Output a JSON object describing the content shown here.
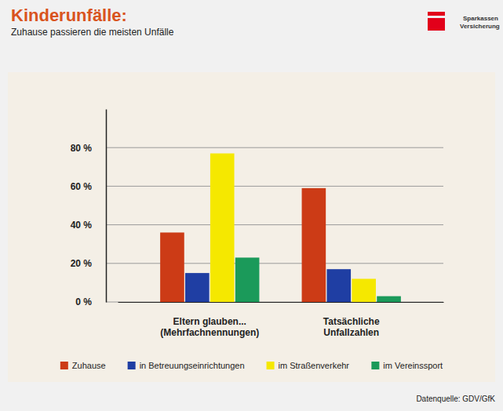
{
  "chart_data": {
    "type": "bar",
    "title": "Kinderunfälle:",
    "subtitle": "Zuhause passieren die meisten Unfälle",
    "annotations": [
      "Sparkassen",
      "Versicherung",
      "Datenquelle: GDV/GfK"
    ],
    "categories": [
      "Eltern glauben...\n(Mehrfachnennungen)",
      "Tatsächliche\nUnfallzahlen"
    ],
    "series": [
      {
        "name": "Zuhause",
        "color": "#cc3b16",
        "values": [
          36,
          59
        ]
      },
      {
        "name": "in Betreuungseinrichtungen",
        "color": "#1f3ea3",
        "values": [
          15,
          17
        ]
      },
      {
        "name": "im Straßenverkehr",
        "color": "#f5e800",
        "values": [
          77,
          12
        ]
      },
      {
        "name": "im Vereinssport",
        "color": "#1b9a5a",
        "values": [
          23,
          3
        ]
      }
    ],
    "ylim": [
      0,
      100
    ],
    "yticks": [
      {
        "value": 0,
        "label": "0 %"
      },
      {
        "value": 20,
        "label": "20 %"
      },
      {
        "value": 40,
        "label": "40 %"
      },
      {
        "value": 60,
        "label": "60 %"
      },
      {
        "value": 80,
        "label": "80 %"
      }
    ],
    "grid": true,
    "legend": "bottom"
  }
}
